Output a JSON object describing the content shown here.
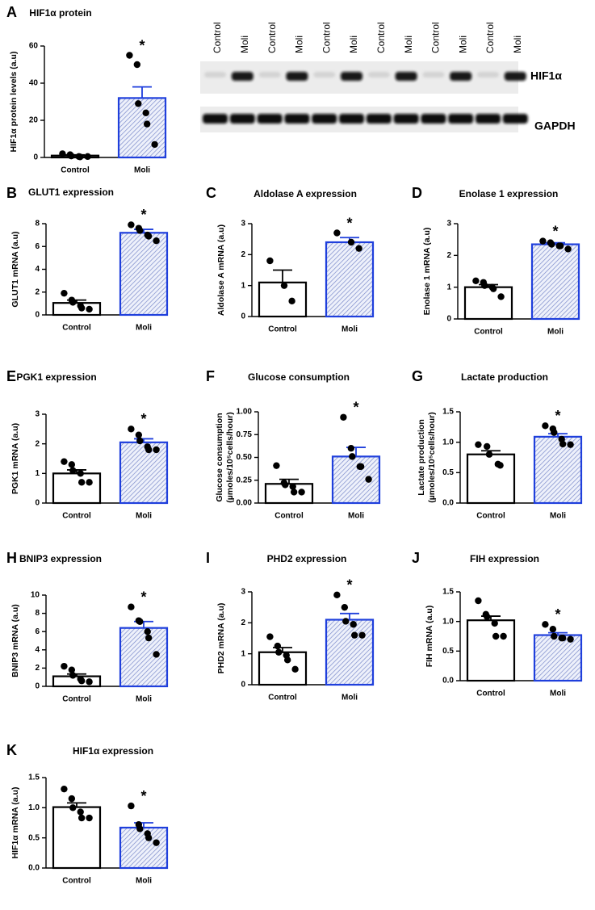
{
  "blot": {
    "lanes": [
      "Control",
      "Moli",
      "Control",
      "Moli",
      "Control",
      "Moli",
      "Control",
      "Moli",
      "Control",
      "Moli",
      "Control",
      "Moli"
    ],
    "bands": [
      "HIF1α",
      "GAPDH"
    ]
  },
  "chart_data": [
    {
      "type": "bar",
      "panel": "A",
      "title": "HIF1α protein",
      "ylabel": [
        "HIF1α protein levels (a.u)"
      ],
      "categories": [
        "Control",
        "Moli"
      ],
      "values": [
        1,
        32
      ],
      "errors": [
        0.4,
        6
      ],
      "points": [
        [
          2,
          1.5,
          0.8,
          0.5,
          0.3,
          0.5
        ],
        [
          55,
          50,
          29,
          24,
          18,
          7
        ]
      ],
      "annotation": "*",
      "colors": [
        "#000000",
        "#1f3fdc"
      ],
      "hatched": [
        false,
        true
      ],
      "ylim": [
        0,
        60
      ],
      "yticks": [
        0,
        20,
        40,
        60
      ]
    },
    {
      "type": "bar",
      "panel": "B",
      "title": "GLUT1 expression",
      "ylabel": [
        "GLUT1 mRNA (a.u)"
      ],
      "categories": [
        "Control",
        "Moli"
      ],
      "values": [
        1.05,
        7.2
      ],
      "errors": [
        0.25,
        0.3
      ],
      "points": [
        [
          1.9,
          1.3,
          1.1,
          0.8,
          0.6,
          0.5
        ],
        [
          7.9,
          7.6,
          7.4,
          7.0,
          6.9,
          6.5
        ]
      ],
      "annotation": "*",
      "colors": [
        "#000000",
        "#1f3fdc"
      ],
      "hatched": [
        false,
        true
      ],
      "ylim": [
        0,
        8
      ],
      "yticks": [
        0,
        2,
        4,
        6,
        8
      ]
    },
    {
      "type": "bar",
      "panel": "C",
      "title": "Aldolase A expression",
      "ylabel": [
        "Aldolase A mRNA (a.u)"
      ],
      "categories": [
        "Control",
        "Moli"
      ],
      "values": [
        1.1,
        2.4
      ],
      "errors": [
        0.4,
        0.15
      ],
      "points": [
        [
          1.8,
          1.0,
          0.5
        ],
        [
          2.7,
          2.4,
          2.2
        ]
      ],
      "annotation": "*",
      "colors": [
        "#000000",
        "#1f3fdc"
      ],
      "hatched": [
        false,
        true
      ],
      "ylim": [
        0,
        3
      ],
      "yticks": [
        0,
        1,
        2,
        3
      ]
    },
    {
      "type": "bar",
      "panel": "D",
      "title": "Enolase 1 expression",
      "ylabel": [
        "Enolase 1 mRNA (a.u)"
      ],
      "categories": [
        "Control",
        "Moli"
      ],
      "values": [
        1.0,
        2.35
      ],
      "errors": [
        0.08,
        0.05
      ],
      "points": [
        [
          1.2,
          1.15,
          1.05,
          1.0,
          0.95,
          0.7
        ],
        [
          2.45,
          2.4,
          2.35,
          2.3,
          2.3,
          2.2
        ]
      ],
      "annotation": "*",
      "colors": [
        "#000000",
        "#1f3fdc"
      ],
      "hatched": [
        false,
        true
      ],
      "ylim": [
        0,
        3
      ],
      "yticks": [
        0,
        1,
        2,
        3
      ]
    },
    {
      "type": "bar",
      "panel": "E",
      "title": "PGK1 expression",
      "ylabel": [
        "PGK1 mRNA (a.u)"
      ],
      "categories": [
        "Control",
        "Moli"
      ],
      "values": [
        1.0,
        2.05
      ],
      "errors": [
        0.12,
        0.12
      ],
      "points": [
        [
          1.4,
          1.3,
          1.1,
          1.0,
          0.7,
          0.7
        ],
        [
          2.5,
          2.3,
          2.1,
          1.9,
          1.8,
          1.8
        ]
      ],
      "annotation": "*",
      "colors": [
        "#000000",
        "#1f3fdc"
      ],
      "hatched": [
        false,
        true
      ],
      "ylim": [
        0,
        3
      ],
      "yticks": [
        0,
        1,
        2,
        3
      ]
    },
    {
      "type": "bar",
      "panel": "F",
      "title": "Glucose consumption",
      "ylabel": [
        "Glucose consumption",
        "(µmoles/10⁵cells/hour)"
      ],
      "categories": [
        "Control",
        "Moli"
      ],
      "values": [
        0.21,
        0.51
      ],
      "errors": [
        0.05,
        0.1
      ],
      "points": [
        [
          0.41,
          0.22,
          0.2,
          0.18,
          0.12,
          0.12
        ],
        [
          0.94,
          0.6,
          0.51,
          0.4,
          0.4,
          0.26
        ]
      ],
      "annotation": "*",
      "colors": [
        "#000000",
        "#1f3fdc"
      ],
      "hatched": [
        false,
        true
      ],
      "ylim": [
        0,
        1
      ],
      "yticks": [
        {
          "value": 0,
          "label": "0.00"
        },
        {
          "value": 0.25,
          "label": "0.25"
        },
        {
          "value": 0.5,
          "label": "0.50"
        },
        {
          "value": 0.75,
          "label": "0.75"
        },
        {
          "value": 1,
          "label": "1.00"
        }
      ]
    },
    {
      "type": "bar",
      "panel": "G",
      "title": "Lactate production",
      "ylabel": [
        "Lactate production",
        "(µmoles/10⁵cells/hour)"
      ],
      "categories": [
        "Control",
        "Moli"
      ],
      "values": [
        0.8,
        1.09
      ],
      "errors": [
        0.06,
        0.05
      ],
      "points": [
        [
          0.96,
          0.93,
          0.8,
          0.64,
          0.62
        ],
        [
          1.27,
          1.22,
          1.16,
          1.05,
          0.97,
          0.96
        ]
      ],
      "annotation": "*",
      "colors": [
        "#000000",
        "#1f3fdc"
      ],
      "hatched": [
        false,
        true
      ],
      "ylim": [
        0,
        1.5
      ],
      "yticks": [
        {
          "value": 0,
          "label": "0.0"
        },
        0.5,
        {
          "value": 1,
          "label": "1.0"
        },
        1.5
      ]
    },
    {
      "type": "bar",
      "panel": "H",
      "title": "BNIP3 expression",
      "ylabel": [
        "BNIP3 mRNA  (a.u)"
      ],
      "categories": [
        "Control",
        "Moli"
      ],
      "values": [
        1.1,
        6.4
      ],
      "errors": [
        0.25,
        0.7
      ],
      "points": [
        [
          2.2,
          1.8,
          1.2,
          0.8,
          0.6,
          0.5
        ],
        [
          8.7,
          7.2,
          7.1,
          6.0,
          5.3,
          3.5
        ]
      ],
      "annotation": "*",
      "colors": [
        "#000000",
        "#1f3fdc"
      ],
      "hatched": [
        false,
        true
      ],
      "ylim": [
        0,
        10
      ],
      "yticks": [
        0,
        2,
        4,
        6,
        8,
        10
      ]
    },
    {
      "type": "bar",
      "panel": "I",
      "title": "PHD2 expression",
      "ylabel": [
        "PHD2 mRNA (a.u)"
      ],
      "categories": [
        "Control",
        "Moli"
      ],
      "values": [
        1.05,
        2.1
      ],
      "errors": [
        0.15,
        0.2
      ],
      "points": [
        [
          1.55,
          1.25,
          1.05,
          0.95,
          0.8,
          0.5
        ],
        [
          2.9,
          2.5,
          2.05,
          1.95,
          1.6,
          1.6
        ]
      ],
      "annotation": "*",
      "colors": [
        "#000000",
        "#1f3fdc"
      ],
      "hatched": [
        false,
        true
      ],
      "ylim": [
        0,
        3
      ],
      "yticks": [
        0,
        1,
        2,
        3
      ]
    },
    {
      "type": "bar",
      "panel": "J",
      "title": "FIH expression",
      "ylabel": [
        "FIH mRNA (a.u)"
      ],
      "categories": [
        "Control",
        "Moli"
      ],
      "values": [
        1.02,
        0.77
      ],
      "errors": [
        0.07,
        0.04
      ],
      "points": [
        [
          1.35,
          1.12,
          1.08,
          0.97,
          0.75,
          0.75
        ],
        [
          0.95,
          0.87,
          0.75,
          0.72,
          0.72,
          0.7
        ]
      ],
      "annotation": "*",
      "colors": [
        "#000000",
        "#1f3fdc"
      ],
      "hatched": [
        false,
        true
      ],
      "ylim": [
        0,
        1.5
      ],
      "yticks": [
        {
          "value": 0,
          "label": "0.0"
        },
        0.5,
        {
          "value": 1,
          "label": "1.0"
        },
        1.5
      ]
    },
    {
      "type": "bar",
      "panel": "K",
      "title": "HIF1α expression",
      "ylabel": [
        "HIF1α mRNA  (a.u)"
      ],
      "categories": [
        "Control",
        "Moli"
      ],
      "values": [
        1.01,
        0.67
      ],
      "errors": [
        0.07,
        0.08
      ],
      "points": [
        [
          1.31,
          1.15,
          1.0,
          0.93,
          0.83,
          0.83
        ],
        [
          1.03,
          0.72,
          0.65,
          0.57,
          0.5,
          0.42
        ]
      ],
      "annotation": "*",
      "colors": [
        "#000000",
        "#1f3fdc"
      ],
      "hatched": [
        false,
        true
      ],
      "ylim": [
        0,
        1.5
      ],
      "yticks": [
        {
          "value": 0,
          "label": "0.0"
        },
        0.5,
        {
          "value": 1,
          "label": "1.0"
        },
        1.5
      ]
    }
  ]
}
